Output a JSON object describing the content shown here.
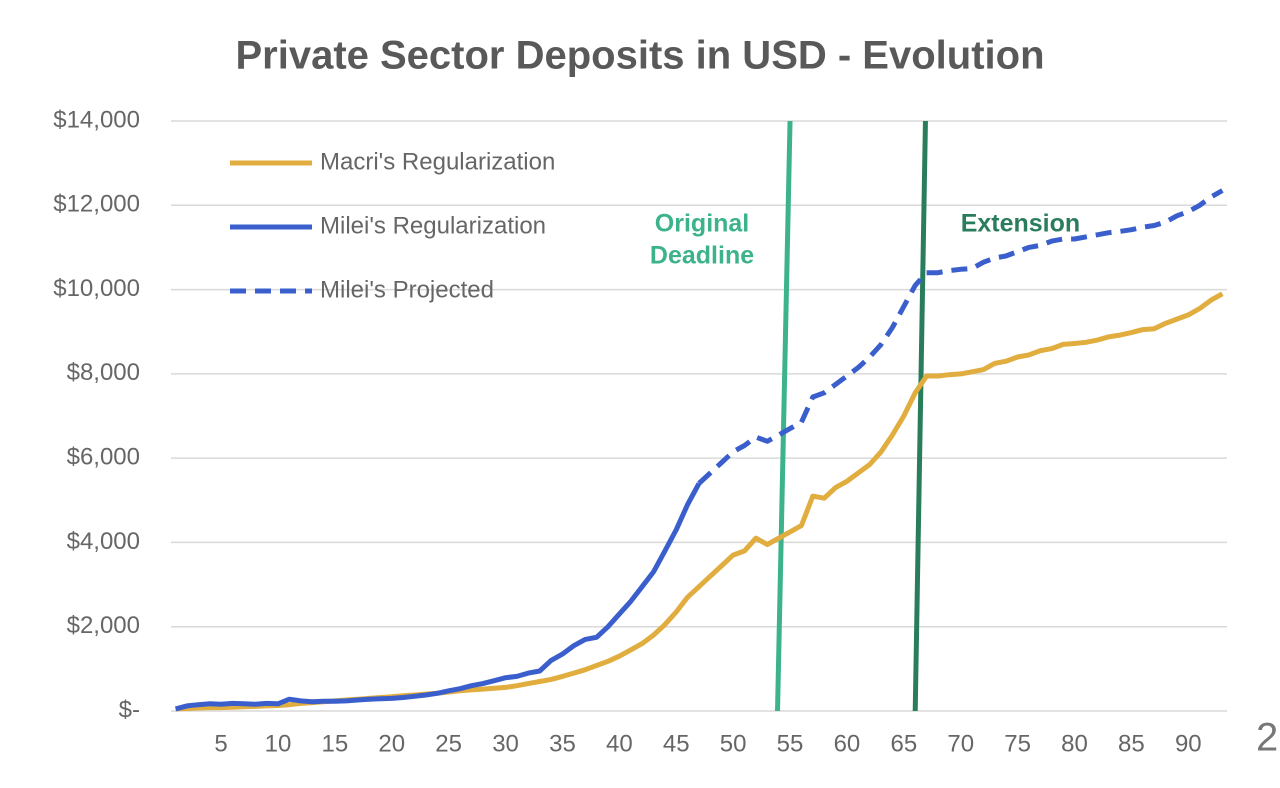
{
  "chart_data": {
    "type": "line",
    "title": "Private Sector Deposits in USD - Evolution",
    "x": [
      1,
      2,
      3,
      4,
      5,
      6,
      7,
      8,
      9,
      10,
      11,
      12,
      13,
      14,
      15,
      16,
      17,
      18,
      19,
      20,
      21,
      22,
      23,
      24,
      25,
      26,
      27,
      28,
      29,
      30,
      31,
      32,
      33,
      34,
      35,
      36,
      37,
      38,
      39,
      40,
      41,
      42,
      43,
      44,
      45,
      46,
      47,
      48,
      49,
      50,
      51,
      52,
      53,
      54,
      55,
      56,
      57,
      58,
      59,
      60,
      61,
      62,
      63,
      64,
      65,
      66,
      67,
      68,
      69,
      70,
      71,
      72,
      73,
      74,
      75,
      76,
      77,
      78,
      79,
      80,
      81,
      82,
      83,
      84,
      85,
      86,
      87,
      88,
      89,
      90,
      91,
      92,
      93
    ],
    "xlim": [
      0.6,
      93.4
    ],
    "xticks": [
      5,
      10,
      15,
      20,
      25,
      30,
      35,
      40,
      45,
      50,
      55,
      60,
      65,
      70,
      75,
      80,
      85,
      90
    ],
    "ylim": [
      0,
      14000
    ],
    "yticks": [
      {
        "value": 0,
        "label": "$-"
      },
      {
        "value": 2000,
        "label": "$2,000"
      },
      {
        "value": 4000,
        "label": "$4,000"
      },
      {
        "value": 6000,
        "label": "$6,000"
      },
      {
        "value": 8000,
        "label": "$8,000"
      },
      {
        "value": 10000,
        "label": "$10,000"
      },
      {
        "value": 12000,
        "label": "$12,000"
      },
      {
        "value": 14000,
        "label": "$14,000"
      }
    ],
    "grid": true,
    "legend": "top-left",
    "series": [
      {
        "name": "Macri's Regularization",
        "color": "#e0ad3e",
        "dash": false,
        "values": [
          50,
          60,
          70,
          80,
          80,
          90,
          100,
          110,
          120,
          130,
          150,
          180,
          200,
          220,
          240,
          260,
          280,
          300,
          320,
          340,
          360,
          380,
          400,
          420,
          450,
          480,
          500,
          520,
          540,
          560,
          600,
          650,
          700,
          750,
          820,
          900,
          980,
          1080,
          1180,
          1300,
          1450,
          1600,
          1800,
          2050,
          2350,
          2700,
          2950,
          3200,
          3450,
          3700,
          3800,
          4100,
          3950,
          4100,
          4250,
          4400,
          5100,
          5050,
          5300,
          5450,
          5650,
          5850,
          6150,
          6550,
          7000,
          7550,
          7950,
          7950,
          7980,
          8000,
          8050,
          8100,
          8250,
          8300,
          8400,
          8450,
          8550,
          8600,
          8700,
          8720,
          8750,
          8800,
          8880,
          8920,
          8980,
          9050,
          9070,
          9200,
          9300,
          9400,
          9550,
          9750,
          9900
        ]
      },
      {
        "name": "Milei's Regularization",
        "color": "#3a5fcd",
        "dash": false,
        "values": [
          50,
          120,
          150,
          170,
          160,
          180,
          170,
          160,
          180,
          170,
          280,
          240,
          220,
          230,
          230,
          240,
          260,
          280,
          290,
          300,
          320,
          350,
          380,
          420,
          480,
          530,
          600,
          650,
          720,
          790,
          820,
          900,
          950,
          1200,
          1350,
          1550,
          1700,
          1750,
          2000,
          2300,
          2600,
          2950,
          3300,
          3800,
          4300,
          4900,
          5400,
          null,
          null,
          null,
          null,
          null,
          null,
          null,
          null,
          null,
          null,
          null,
          null,
          null,
          null,
          null,
          null,
          null,
          null,
          null,
          null,
          null,
          null,
          null,
          null,
          null,
          null,
          null,
          null,
          null,
          null,
          null,
          null,
          null,
          null,
          null,
          null,
          null,
          null,
          null,
          null,
          null,
          null,
          null,
          null,
          null,
          null
        ]
      },
      {
        "name": "Milei's Projected",
        "color": "#3a5fcd",
        "dash": true,
        "values": [
          null,
          null,
          null,
          null,
          null,
          null,
          null,
          null,
          null,
          null,
          null,
          null,
          null,
          null,
          null,
          null,
          null,
          null,
          null,
          null,
          null,
          null,
          null,
          null,
          null,
          null,
          null,
          null,
          null,
          null,
          null,
          null,
          null,
          null,
          null,
          null,
          null,
          null,
          null,
          null,
          null,
          null,
          null,
          null,
          null,
          null,
          5400,
          5650,
          5900,
          6150,
          6300,
          6500,
          6400,
          6550,
          6700,
          6850,
          7450,
          7550,
          7750,
          7950,
          8150,
          8400,
          8700,
          9100,
          9600,
          10100,
          10400,
          10400,
          10450,
          10480,
          10500,
          10650,
          10750,
          10800,
          10900,
          11000,
          11050,
          11150,
          11200,
          11200,
          11250,
          11300,
          11350,
          11380,
          11420,
          11480,
          11520,
          11600,
          11750,
          11850,
          12000,
          12200,
          12350
        ]
      }
    ],
    "annotations": [
      {
        "text": [
          "Original",
          "Deadline"
        ],
        "x": [
          53.9,
          55.0
        ],
        "color": "#3cb38a"
      },
      {
        "text": [
          "Extension"
        ],
        "x": [
          66.0,
          66.9
        ],
        "color": "#2a7d5c"
      }
    ],
    "page_number": "2"
  }
}
